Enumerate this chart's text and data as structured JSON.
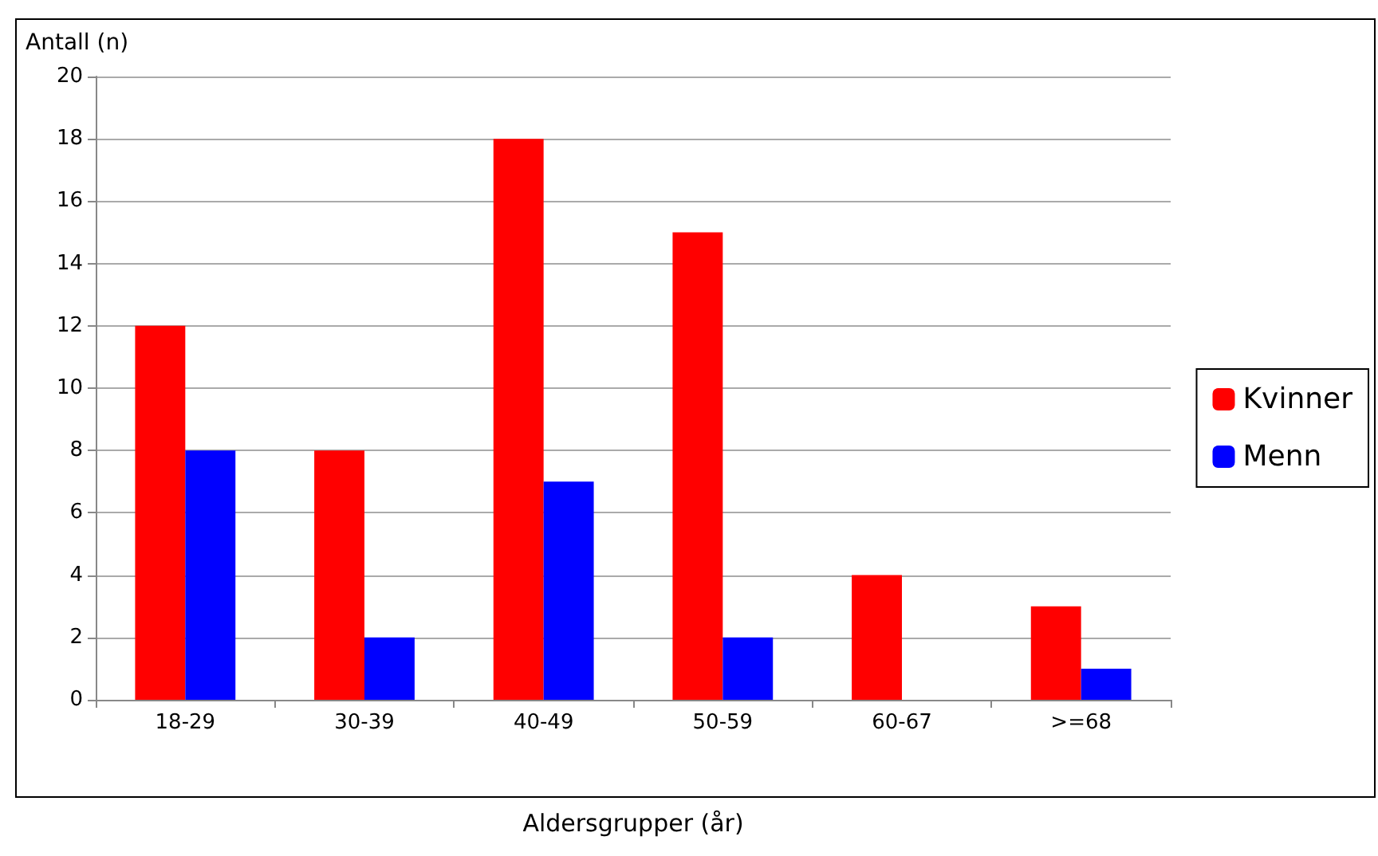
{
  "chart_data": {
    "type": "bar",
    "xlabel": "Aldersgrupper (år)",
    "ylabel": "Antall (n)",
    "categories": [
      "18-29",
      "30-39",
      "40-49",
      "50-59",
      "60-67",
      ">=68"
    ],
    "series": [
      {
        "name": "Kvinner",
        "color": "#ff0000",
        "values": [
          12,
          8,
          18,
          15,
          4,
          3
        ]
      },
      {
        "name": "Menn",
        "color": "#0000ff",
        "values": [
          8,
          2,
          7,
          2,
          0,
          1
        ]
      }
    ],
    "ylim": [
      0,
      20
    ],
    "yticks": [
      0,
      2,
      4,
      6,
      8,
      10,
      12,
      14,
      16,
      18,
      20
    ],
    "grid": "y",
    "legend": "right"
  }
}
